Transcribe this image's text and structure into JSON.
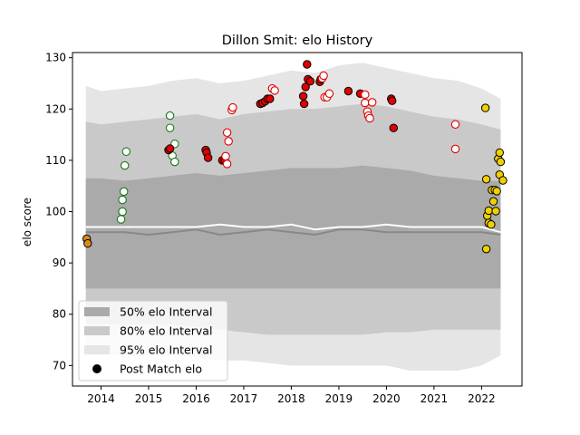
{
  "chart_data": {
    "type": "scatter",
    "title": "Dillon Smit: elo History",
    "xlabel": "",
    "ylabel": "elo score",
    "xlim": [
      2013.4,
      2022.85
    ],
    "ylim": [
      66,
      131
    ],
    "x_ticks": [
      2014,
      2015,
      2016,
      2017,
      2018,
      2019,
      2020,
      2021,
      2022
    ],
    "y_ticks": [
      70,
      80,
      90,
      100,
      110,
      120,
      130
    ],
    "legend_position": "lower-left",
    "legend": [
      {
        "label": "50% elo Interval",
        "key": "band50"
      },
      {
        "label": "80% elo Interval",
        "key": "band80"
      },
      {
        "label": "95% elo Interval",
        "key": "band95"
      },
      {
        "label": "Post Match elo",
        "key": "marker"
      }
    ],
    "colors": {
      "band50": "#aaaaaa",
      "band80": "#c9c9c9",
      "band95": "#e5e5e5",
      "median_line": "#888888",
      "mean_line": "#ffffff",
      "marker_legend": "#000000",
      "green": "#1a7a1a",
      "red": "#e00000",
      "gold": "#f0d000",
      "orange": "#d98c1a"
    },
    "bands": {
      "x": [
        2013.68,
        2014.0,
        2014.5,
        2015.0,
        2015.5,
        2016.0,
        2016.5,
        2017.0,
        2017.5,
        2018.0,
        2018.5,
        2019.0,
        2019.5,
        2020.0,
        2020.5,
        2021.0,
        2021.5,
        2022.0,
        2022.4
      ],
      "p95_hi": [
        124.5,
        123.5,
        124.0,
        124.5,
        125.5,
        126.0,
        125.0,
        125.5,
        126.5,
        127.5,
        127.0,
        128.5,
        129.0,
        128.0,
        127.0,
        126.0,
        125.5,
        124.0,
        122.0
      ],
      "p80_hi": [
        117.5,
        117.0,
        117.5,
        118.0,
        118.5,
        119.0,
        118.0,
        119.0,
        119.5,
        120.0,
        120.0,
        120.5,
        121.0,
        120.5,
        119.5,
        118.5,
        118.0,
        117.0,
        116.0
      ],
      "p50_hi": [
        106.5,
        106.5,
        106.0,
        106.5,
        107.0,
        107.5,
        107.0,
        107.5,
        108.0,
        108.5,
        108.5,
        108.5,
        109.0,
        108.5,
        108.0,
        107.0,
        106.5,
        106.0,
        106.0
      ],
      "mean": [
        97.0,
        97.0,
        97.0,
        97.0,
        97.0,
        97.0,
        97.5,
        97.0,
        97.0,
        97.5,
        96.5,
        97.0,
        97.0,
        97.5,
        97.0,
        97.0,
        97.0,
        97.0,
        96.0
      ],
      "median": [
        96.0,
        96.0,
        96.0,
        95.5,
        96.0,
        96.5,
        95.5,
        96.0,
        96.5,
        96.0,
        95.5,
        96.5,
        96.5,
        96.0,
        96.0,
        96.0,
        96.0,
        96.0,
        95.5
      ],
      "p50_lo": [
        85.0,
        85.0,
        85.0,
        85.0,
        85.0,
        85.0,
        85.0,
        85.0,
        85.0,
        85.0,
        85.0,
        85.0,
        85.0,
        85.0,
        85.0,
        85.0,
        85.0,
        85.0,
        85.0
      ],
      "p80_lo": [
        78.0,
        78.0,
        78.0,
        78.0,
        78.0,
        77.5,
        77.0,
        76.5,
        76.0,
        76.0,
        76.0,
        76.0,
        76.0,
        76.5,
        76.5,
        77.0,
        77.0,
        77.0,
        77.0
      ],
      "p95_lo": [
        72.0,
        72.0,
        72.0,
        72.0,
        72.0,
        71.5,
        71.0,
        71.0,
        70.5,
        70.0,
        70.0,
        70.0,
        70.0,
        70.0,
        69.0,
        69.0,
        69.0,
        70.0,
        72.0
      ]
    },
    "series": [
      {
        "points": [
          [
            2013.7,
            94.7,
            "orange",
            "filled"
          ],
          [
            2013.72,
            93.8,
            "orange",
            "filled"
          ],
          [
            2014.42,
            98.5,
            "green",
            "hollow"
          ],
          [
            2014.45,
            100.0,
            "green",
            "hollow"
          ],
          [
            2014.45,
            102.3,
            "green",
            "hollow"
          ],
          [
            2014.48,
            103.9,
            "green",
            "hollow"
          ],
          [
            2014.5,
            109.0,
            "green",
            "hollow"
          ],
          [
            2014.53,
            111.7,
            "green",
            "hollow"
          ],
          [
            2015.45,
            118.7,
            "green",
            "hollow"
          ],
          [
            2015.45,
            116.3,
            "green",
            "hollow"
          ],
          [
            2015.55,
            113.2,
            "green",
            "hollow"
          ],
          [
            2015.5,
            110.9,
            "green",
            "hollow"
          ],
          [
            2015.55,
            109.7,
            "green",
            "hollow"
          ],
          [
            2015.42,
            112.0,
            "red",
            "filled"
          ],
          [
            2015.45,
            112.3,
            "red",
            "filled"
          ],
          [
            2016.2,
            112.0,
            "red",
            "filled"
          ],
          [
            2016.22,
            111.5,
            "red",
            "filled"
          ],
          [
            2016.25,
            110.5,
            "red",
            "filled"
          ],
          [
            2016.55,
            110.0,
            "red",
            "filled"
          ],
          [
            2016.6,
            110.0,
            "red",
            "filled"
          ],
          [
            2016.62,
            110.8,
            "red",
            "hollow"
          ],
          [
            2016.65,
            109.3,
            "red",
            "hollow"
          ],
          [
            2016.68,
            113.7,
            "red",
            "hollow"
          ],
          [
            2016.65,
            115.4,
            "red",
            "hollow"
          ],
          [
            2016.75,
            119.8,
            "red",
            "hollow"
          ],
          [
            2016.77,
            120.3,
            "red",
            "hollow"
          ],
          [
            2017.35,
            121.0,
            "red",
            "filled"
          ],
          [
            2017.4,
            121.2,
            "red",
            "filled"
          ],
          [
            2017.45,
            121.5,
            "red",
            "filled"
          ],
          [
            2017.5,
            122.0,
            "red",
            "filled"
          ],
          [
            2017.55,
            122.0,
            "red",
            "filled"
          ],
          [
            2017.6,
            124.0,
            "red",
            "hollow"
          ],
          [
            2017.65,
            123.6,
            "red",
            "hollow"
          ],
          [
            2018.25,
            122.5,
            "red",
            "filled"
          ],
          [
            2018.27,
            121.0,
            "red",
            "filled"
          ],
          [
            2018.3,
            124.3,
            "red",
            "filled"
          ],
          [
            2018.35,
            125.8,
            "red",
            "filled"
          ],
          [
            2018.4,
            125.4,
            "red",
            "filled"
          ],
          [
            2018.33,
            128.7,
            "red",
            "filled"
          ],
          [
            2018.6,
            125.3,
            "red",
            "filled"
          ],
          [
            2018.62,
            125.8,
            "red",
            "filled"
          ],
          [
            2018.65,
            126.0,
            "red",
            "hollow"
          ],
          [
            2018.68,
            126.5,
            "red",
            "hollow"
          ],
          [
            2018.7,
            122.3,
            "red",
            "hollow"
          ],
          [
            2018.75,
            122.3,
            "red",
            "hollow"
          ],
          [
            2018.8,
            123.0,
            "red",
            "hollow"
          ],
          [
            2019.2,
            123.5,
            "red",
            "filled"
          ],
          [
            2019.45,
            123.0,
            "red",
            "filled"
          ],
          [
            2019.55,
            122.8,
            "red",
            "hollow"
          ],
          [
            2019.55,
            121.2,
            "red",
            "hollow"
          ],
          [
            2019.6,
            119.5,
            "red",
            "hollow"
          ],
          [
            2019.62,
            118.7,
            "red",
            "hollow"
          ],
          [
            2019.65,
            118.2,
            "red",
            "hollow"
          ],
          [
            2019.7,
            121.3,
            "red",
            "hollow"
          ],
          [
            2020.1,
            122.0,
            "red",
            "filled"
          ],
          [
            2020.12,
            121.6,
            "red",
            "filled"
          ],
          [
            2020.15,
            116.3,
            "red",
            "filled"
          ],
          [
            2021.45,
            117.0,
            "red",
            "hollow"
          ],
          [
            2021.45,
            112.2,
            "red",
            "hollow"
          ],
          [
            2022.08,
            120.2,
            "gold",
            "filled"
          ],
          [
            2022.1,
            106.3,
            "gold",
            "filled"
          ],
          [
            2022.12,
            99.2,
            "gold",
            "filled"
          ],
          [
            2022.15,
            100.2,
            "gold",
            "filled"
          ],
          [
            2022.15,
            97.8,
            "gold",
            "filled"
          ],
          [
            2022.1,
            92.7,
            "gold",
            "filled"
          ],
          [
            2022.2,
            97.5,
            "gold",
            "filled"
          ],
          [
            2022.22,
            104.2,
            "gold",
            "filled"
          ],
          [
            2022.25,
            102.0,
            "gold",
            "filled"
          ],
          [
            2022.28,
            104.2,
            "gold",
            "filled"
          ],
          [
            2022.3,
            100.1,
            "gold",
            "filled"
          ],
          [
            2022.32,
            104.0,
            "gold",
            "filled"
          ],
          [
            2022.35,
            110.3,
            "gold",
            "filled"
          ],
          [
            2022.38,
            111.5,
            "gold",
            "filled"
          ],
          [
            2022.4,
            109.7,
            "gold",
            "filled"
          ],
          [
            2022.38,
            107.2,
            "gold",
            "filled"
          ],
          [
            2022.45,
            106.1,
            "gold",
            "filled"
          ]
        ]
      }
    ]
  }
}
